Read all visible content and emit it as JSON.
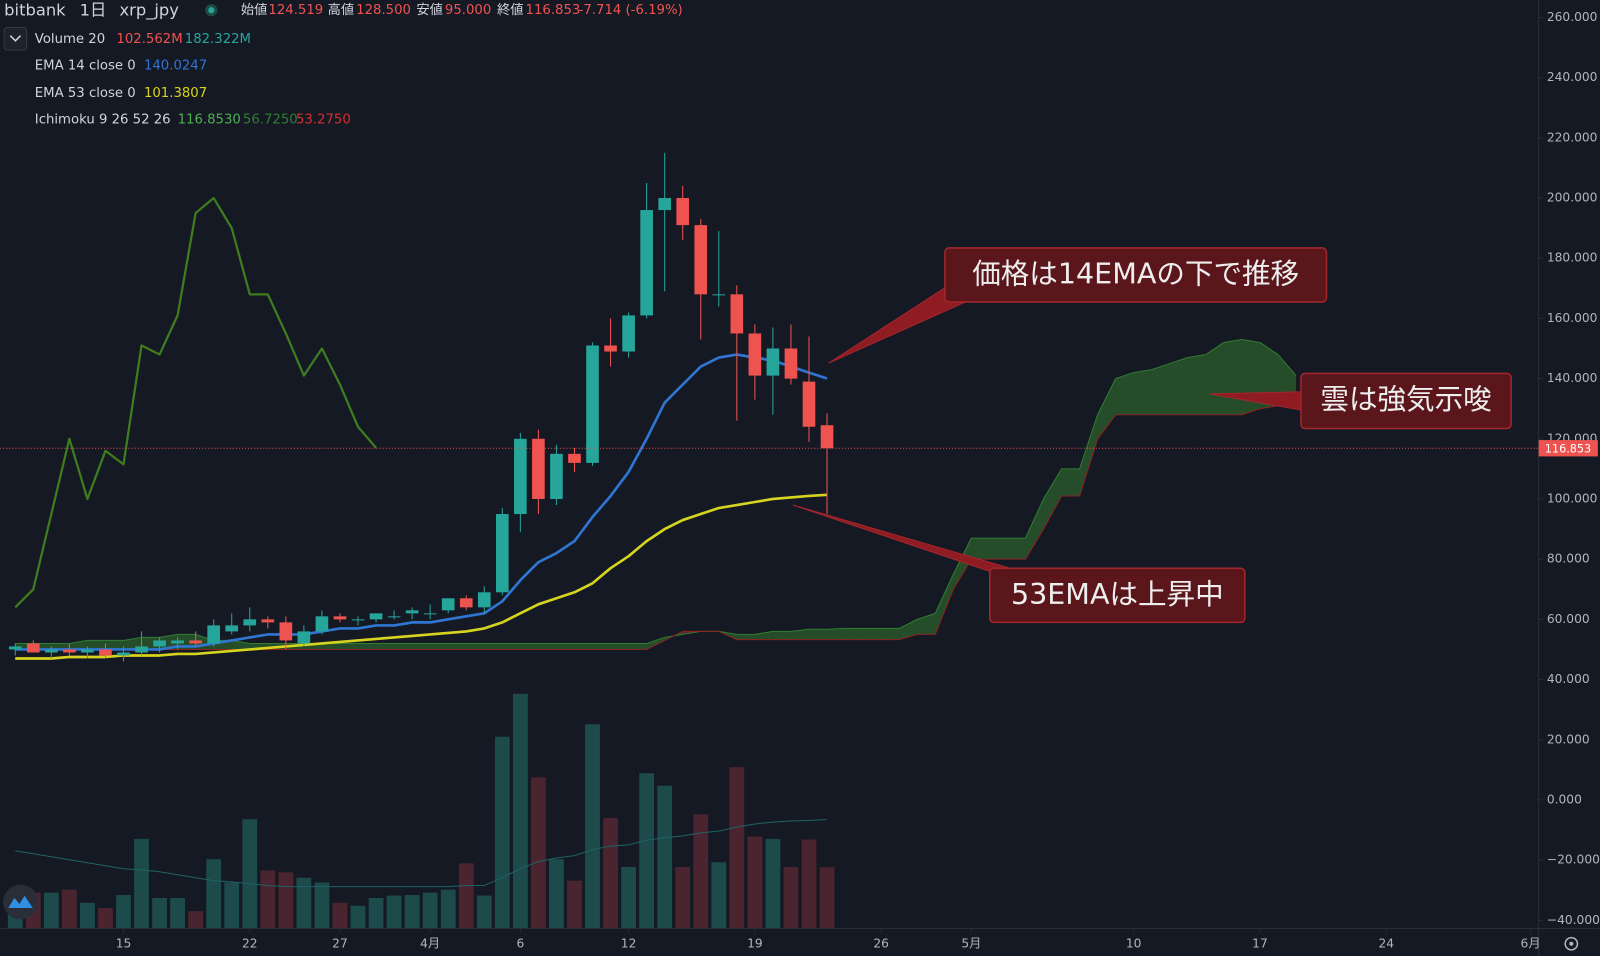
{
  "chart_data": {
    "type": "candlestick",
    "header": {
      "exchange": "bitbank",
      "interval": "1日",
      "symbol": "xrp_jpy",
      "open_label": "始値",
      "high_label": "高値",
      "low_label": "安値",
      "close_label": "終値",
      "last_labels": {
        "open": "124.519",
        "high": "128.500",
        "low": "95.000",
        "close": "116.853"
      },
      "change": "-7.714 (-6.19%)"
    },
    "x": [
      9,
      10,
      11,
      12,
      13,
      14,
      15,
      16,
      17,
      18,
      19,
      20,
      21,
      22,
      23,
      24,
      25,
      26,
      27,
      28,
      29,
      30,
      31,
      32,
      33,
      34,
      35,
      36,
      37,
      38,
      39,
      40,
      41,
      42,
      43,
      44,
      45,
      46,
      47,
      48,
      49,
      50,
      51,
      52,
      53,
      54
    ],
    "open": [
      50,
      52,
      49,
      50,
      49,
      50,
      48,
      49,
      51,
      52,
      53,
      52,
      56,
      58,
      60,
      59,
      52,
      56,
      61,
      60,
      60,
      61,
      62,
      62,
      63,
      67,
      64,
      69,
      95,
      120,
      100,
      115,
      112,
      151,
      149,
      161,
      196,
      200,
      191,
      168,
      168,
      155,
      141,
      150,
      139,
      124.519
    ],
    "high": [
      52,
      53,
      51,
      52,
      51,
      52,
      51,
      56,
      54,
      54,
      56,
      60,
      62,
      64,
      61,
      61,
      58,
      63,
      62,
      61,
      62,
      63,
      64,
      65,
      67,
      68,
      71,
      97,
      122,
      123,
      118,
      117,
      152,
      160,
      162,
      205,
      215,
      204,
      193,
      189,
      171,
      158,
      157,
      158,
      154,
      128.5
    ],
    "low": [
      48,
      49,
      47,
      48,
      47,
      47,
      46,
      48,
      49,
      50,
      51,
      51,
      55,
      56,
      57,
      50,
      51,
      55,
      59,
      58,
      59,
      60,
      60,
      60,
      62,
      63,
      62,
      68,
      89,
      95,
      98,
      109,
      111,
      144,
      147,
      160,
      169,
      186,
      153,
      164,
      126,
      133,
      128,
      138,
      119,
      95
    ],
    "close": [
      51,
      49,
      50,
      49,
      50,
      48,
      49,
      51,
      53,
      53,
      52,
      58,
      58,
      60,
      59,
      53,
      56,
      61,
      60,
      60,
      62,
      61,
      63,
      62,
      67,
      64,
      69,
      95,
      120,
      100,
      115,
      112,
      151,
      149,
      161,
      196,
      200,
      191,
      168,
      168,
      155,
      141,
      150,
      140,
      124,
      116.853
    ],
    "up_color": "#26a69a",
    "down_color": "#ef5350",
    "volume": {
      "name": "Volume 20",
      "values": [
        51,
        60,
        60,
        65,
        43,
        34,
        56,
        150,
        51,
        51,
        29,
        116,
        77,
        183,
        97,
        94,
        85,
        77,
        43,
        38,
        51,
        55,
        56,
        60,
        65,
        109,
        55,
        321,
        393,
        253,
        116,
        80,
        342,
        185,
        103,
        260,
        239,
        103,
        191,
        111,
        270,
        154,
        150,
        103,
        149,
        102.562
      ],
      "value_label": "102.562M",
      "ma_values": [
        130,
        125,
        120,
        115,
        110,
        105,
        100,
        98,
        95,
        90,
        85,
        80,
        78,
        75,
        72,
        70,
        70,
        70,
        70,
        70,
        70,
        70,
        70,
        70,
        70,
        72,
        72,
        85,
        100,
        112,
        118,
        122,
        132,
        138,
        140,
        148,
        152,
        155,
        160,
        163,
        170,
        175,
        178,
        180,
        181,
        182.322
      ],
      "ma_label": "182.322M",
      "up_color": "#1d4a4b",
      "down_color": "#4a2530",
      "ma_color": "#1f6262"
    },
    "series": [
      {
        "name": "EMA 14 close 0",
        "color": "#2f76d2",
        "values": [
          50,
          50,
          50,
          50,
          50,
          50,
          50,
          50,
          50,
          51,
          51,
          52,
          53,
          54,
          55,
          55,
          55,
          56,
          57,
          57,
          58,
          58,
          59,
          59,
          60,
          61,
          62,
          66,
          73,
          79,
          82,
          86,
          94,
          101,
          109,
          120,
          132,
          138,
          144,
          147,
          148,
          147,
          146,
          144,
          142,
          140.0247
        ]
      },
      {
        "name": "EMA 53 close 0",
        "color": "#d6d41e",
        "values": [
          47,
          47,
          47,
          47.5,
          47.5,
          47.5,
          48,
          48,
          48,
          48.5,
          48.5,
          49,
          49.5,
          50,
          50.5,
          51,
          51.5,
          52,
          52.5,
          53,
          53.5,
          54,
          54.5,
          55,
          55.5,
          56,
          57,
          59,
          62,
          65,
          67,
          69,
          72,
          77,
          81,
          86,
          90,
          93,
          95,
          97,
          98,
          99,
          100,
          100.5,
          101,
          101.3807
        ]
      }
    ],
    "ichimoku": {
      "name": "Ichimoku 9 26 52 26",
      "lagging": {
        "color": "#3e7d1e",
        "value_label": "116.8530",
        "x": [
          9,
          10,
          11,
          12,
          13,
          14,
          15,
          16,
          17,
          18,
          19,
          20,
          21,
          22,
          23,
          24,
          25,
          26,
          27,
          28,
          29
        ],
        "values": [
          64,
          70,
          95,
          120,
          100,
          116,
          111.5,
          151,
          148,
          161,
          195,
          200,
          190,
          168,
          168,
          155,
          141,
          150,
          138,
          124,
          117
        ]
      },
      "cloud_x": [
        9,
        10,
        11,
        12,
        13,
        14,
        15,
        16,
        17,
        18,
        19,
        20,
        21,
        22,
        23,
        24,
        25,
        26,
        27,
        28,
        29,
        30,
        31,
        32,
        33,
        34,
        35,
        36,
        37,
        38,
        39,
        40,
        41,
        42,
        43,
        44,
        45,
        46,
        47,
        48,
        49,
        50,
        51,
        52,
        53,
        54,
        55,
        56,
        57,
        58,
        59,
        60,
        61,
        62,
        63,
        64,
        65,
        66,
        67,
        68,
        69,
        70,
        71,
        72,
        73,
        74,
        75,
        76,
        77,
        78,
        79,
        80
      ],
      "span_a": [
        52,
        52,
        52,
        52,
        53,
        53,
        53,
        54,
        54,
        55,
        55,
        53,
        53,
        52,
        52,
        52,
        52,
        52,
        52,
        52,
        52,
        52,
        52,
        52,
        52,
        52,
        52,
        52,
        52,
        52,
        52,
        52,
        52,
        52,
        52,
        52,
        54,
        55,
        56,
        56,
        55,
        55,
        56,
        56,
        56.725,
        56.725,
        57,
        57,
        57,
        57,
        60,
        62,
        75,
        87,
        87,
        87,
        87,
        100,
        110,
        110,
        128,
        140,
        142,
        143,
        145,
        147,
        148,
        152,
        153,
        152,
        148,
        141
      ],
      "span_b": [
        50,
        50,
        50,
        50,
        50,
        50,
        50,
        50,
        50,
        50,
        50,
        50,
        50,
        50,
        50,
        50,
        50,
        50,
        50,
        50,
        50,
        50,
        50,
        50,
        50,
        50,
        50,
        50,
        50,
        50,
        50,
        50,
        50,
        50,
        50,
        50,
        53,
        56,
        56,
        56,
        53.275,
        53.275,
        53.275,
        53.275,
        53.275,
        53.275,
        53.275,
        53.275,
        53.275,
        53.275,
        55,
        55,
        70,
        80,
        80,
        80,
        80,
        90,
        101,
        101,
        120,
        128,
        128,
        128,
        128,
        128,
        128,
        128,
        128,
        130,
        131,
        131
      ],
      "span_a_label": "56.7250",
      "span_b_label": "53.2750",
      "span_a_color": "#2f7d32",
      "span_b_color": "#8e2222",
      "cloud_up_color": "rgba(60,150,50,0.42)",
      "cloud_down_color": "rgba(220,50,50,0.42)"
    },
    "xlim": [
      8.16,
      93.45
    ],
    "xticks": [
      15,
      22,
      27,
      {
        "value": 32,
        "label": "4月"
      },
      {
        "value": 37,
        "label": "6"
      },
      {
        "value": 43,
        "label": "12"
      },
      {
        "value": 50,
        "label": "19"
      },
      {
        "value": 57,
        "label": "26"
      },
      {
        "value": 62,
        "label": "5月"
      },
      {
        "value": 71,
        "label": "10"
      },
      {
        "value": 78,
        "label": "17"
      },
      {
        "value": 85,
        "label": "24"
      },
      {
        "value": 93,
        "label": "6月"
      }
    ],
    "ylim": [
      -42.7,
      265.8
    ],
    "yticks": [
      {
        "value": 260,
        "label": "260.000"
      },
      {
        "value": 240,
        "label": "240.000"
      },
      {
        "value": 220,
        "label": "220.000"
      },
      {
        "value": 200,
        "label": "200.000"
      },
      {
        "value": 180,
        "label": "180.000"
      },
      {
        "value": 160,
        "label": "160.000"
      },
      {
        "value": 140,
        "label": "140.000"
      },
      {
        "value": 120,
        "label": "120.000"
      },
      {
        "value": 100,
        "label": "100.000"
      },
      {
        "value": 80,
        "label": "80.000"
      },
      {
        "value": 60,
        "label": "60.000"
      },
      {
        "value": 40,
        "label": "40.000"
      },
      {
        "value": 20,
        "label": "20.000"
      },
      {
        "value": 0,
        "label": "0.000"
      },
      {
        "value": -20,
        "label": "−20.000"
      },
      {
        "value": -40,
        "label": "−40.000"
      }
    ],
    "grid": false,
    "annotations": [
      "価格は14EMAの下で推移",
      "雲は強気示唆",
      "53EMAは上昇中"
    ]
  }
}
